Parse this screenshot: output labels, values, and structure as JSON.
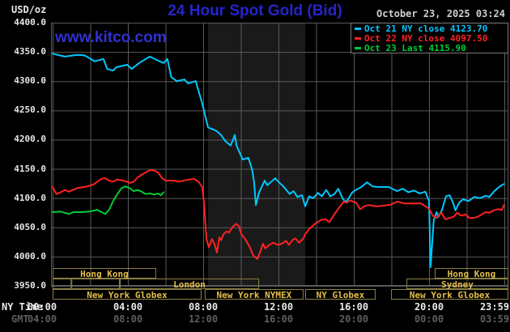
{
  "header": {
    "unit_label": "USD/oz",
    "title": "24 Hour Spot Gold (Bid)",
    "datetime": "October 23, 2025 03:24",
    "watermark": "www.kitco.com"
  },
  "legend": [
    {
      "label": "Oct 21 NY close 4123.70",
      "color": "#00c8ff"
    },
    {
      "label": "Oct 22 NY close 4097.50",
      "color": "#ff2222"
    },
    {
      "label": "Oct 23 Last 4115.90",
      "color": "#00cc33"
    }
  ],
  "axes": {
    "y_tick_labels": [
      "4400.0",
      "4350.0",
      "4300.0",
      "4250.0",
      "4200.0",
      "4150.0",
      "4100.0",
      "4050.0",
      "4000.0",
      "3950.0"
    ],
    "y_max": 4400,
    "y_min": 3950,
    "y_step": 50,
    "x_row1_label": "NY Time",
    "x_row2_label": "GMT",
    "x_row1_ticks": [
      "00:00",
      "04:00",
      "08:00",
      "12:00",
      "16:00",
      "20:00",
      "23:59"
    ],
    "x_row2_ticks": [
      "04:00",
      "08:00",
      "12:00",
      "16:00",
      "20:00",
      "00:00",
      "03:59"
    ],
    "grid_hours_step": 2,
    "hours_span": 24
  },
  "sessions": {
    "rows": [
      [
        {
          "label": "Hong Kong",
          "h0": 0.0,
          "h1": 5.5
        },
        {
          "label": "Hong Kong",
          "h0": 20.3,
          "h1": 24.25
        }
      ],
      [
        {
          "label": "",
          "h0": 0.0,
          "h1": 1.0
        },
        {
          "label": "",
          "h0": 1.0,
          "h1": 3.57
        },
        {
          "label": "London",
          "h0": 3.57,
          "h1": 10.97
        },
        {
          "label": "Sydney",
          "h0": 18.8,
          "h1": 24.25
        }
      ],
      [
        {
          "label": "New York Globex",
          "h0": 0.0,
          "h1": 7.91
        },
        {
          "label": "New York NYMEX",
          "h0": 8.08,
          "h1": 13.33
        },
        {
          "label": "NY Globex",
          "h0": 13.42,
          "h1": 17.16
        },
        {
          "label": "New York Globex",
          "h0": 17.98,
          "h1": 24.25
        }
      ]
    ]
  },
  "highlight_band": {
    "h0": 8.25,
    "h1": 13.42,
    "color": "#1a1a1a"
  },
  "colors": {
    "background": "#000000",
    "grid": "#5a5a5a",
    "title_blue": "#2525cc",
    "date_text": "#cfcfcf",
    "session_border": "#8a7f45",
    "session_text": "#e3bf49"
  },
  "chart_data": {
    "type": "line",
    "title": "24 Hour Spot Gold (Bid)",
    "xlabel": "NY Time (hours, 00:00-23:59)",
    "ylabel": "USD/oz",
    "ylim": [
      3950,
      4400
    ],
    "grid": true,
    "legend_position": "top-right",
    "series": [
      {
        "name": "Oct 21 (NY close 4123.70)",
        "color": "#00c8ff",
        "points": [
          [
            0.0,
            4347
          ],
          [
            0.65,
            4342
          ],
          [
            1.3,
            4345
          ],
          [
            1.7,
            4344
          ],
          [
            2.24,
            4334
          ],
          [
            2.7,
            4338
          ],
          [
            2.9,
            4321
          ],
          [
            3.2,
            4318
          ],
          [
            3.4,
            4324
          ],
          [
            3.96,
            4328
          ],
          [
            4.2,
            4321
          ],
          [
            4.6,
            4331
          ],
          [
            5.16,
            4342
          ],
          [
            5.6,
            4335
          ],
          [
            5.9,
            4331
          ],
          [
            6.1,
            4338
          ],
          [
            6.3,
            4307
          ],
          [
            6.6,
            4300
          ],
          [
            7.0,
            4303
          ],
          [
            7.2,
            4296
          ],
          [
            7.6,
            4300
          ],
          [
            7.95,
            4262
          ],
          [
            8.26,
            4221
          ],
          [
            8.7,
            4215
          ],
          [
            8.95,
            4208
          ],
          [
            9.16,
            4198
          ],
          [
            9.46,
            4190
          ],
          [
            9.68,
            4208
          ],
          [
            9.77,
            4190
          ],
          [
            10.1,
            4166
          ],
          [
            10.4,
            4169
          ],
          [
            10.6,
            4149
          ],
          [
            10.7,
            4128
          ],
          [
            10.8,
            4088
          ],
          [
            10.97,
            4110
          ],
          [
            11.27,
            4130
          ],
          [
            11.4,
            4122
          ],
          [
            11.83,
            4134
          ],
          [
            11.96,
            4129
          ],
          [
            12.26,
            4120
          ],
          [
            12.6,
            4107
          ],
          [
            12.8,
            4112
          ],
          [
            13.0,
            4102
          ],
          [
            13.25,
            4105
          ],
          [
            13.42,
            4086
          ],
          [
            13.63,
            4103
          ],
          [
            13.85,
            4100
          ],
          [
            14.1,
            4109
          ],
          [
            14.3,
            4103
          ],
          [
            14.54,
            4114
          ],
          [
            14.75,
            4103
          ],
          [
            14.97,
            4107
          ],
          [
            15.18,
            4116
          ],
          [
            15.4,
            4100
          ],
          [
            15.57,
            4093
          ],
          [
            15.7,
            4098
          ],
          [
            15.9,
            4109
          ],
          [
            16.1,
            4114
          ],
          [
            16.4,
            4119
          ],
          [
            16.7,
            4127
          ],
          [
            17.0,
            4120
          ],
          [
            17.3,
            4119
          ],
          [
            17.85,
            4119
          ],
          [
            18.3,
            4112
          ],
          [
            18.6,
            4116
          ],
          [
            18.9,
            4110
          ],
          [
            19.2,
            4113
          ],
          [
            19.5,
            4108
          ],
          [
            19.8,
            4111
          ],
          [
            20.0,
            4095
          ],
          [
            20.08,
            3982
          ],
          [
            20.25,
            4062
          ],
          [
            20.4,
            4076
          ],
          [
            20.5,
            4068
          ],
          [
            20.7,
            4081
          ],
          [
            20.9,
            4103
          ],
          [
            21.1,
            4105
          ],
          [
            21.3,
            4090
          ],
          [
            21.4,
            4079
          ],
          [
            21.6,
            4092
          ],
          [
            21.8,
            4098
          ],
          [
            22.1,
            4095
          ],
          [
            22.4,
            4102
          ],
          [
            22.7,
            4100
          ],
          [
            23.0,
            4104
          ],
          [
            23.2,
            4102
          ],
          [
            23.5,
            4113
          ],
          [
            23.8,
            4121
          ],
          [
            23.98,
            4124
          ]
        ]
      },
      {
        "name": "Oct 22 (NY close 4097.50)",
        "color": "#ff2222",
        "points": [
          [
            0.0,
            4119
          ],
          [
            0.2,
            4107
          ],
          [
            0.43,
            4110
          ],
          [
            0.65,
            4114
          ],
          [
            0.86,
            4111
          ],
          [
            1.3,
            4117
          ],
          [
            1.7,
            4119
          ],
          [
            2.15,
            4123
          ],
          [
            2.6,
            4133
          ],
          [
            2.8,
            4134
          ],
          [
            3.0,
            4130
          ],
          [
            3.2,
            4128
          ],
          [
            3.44,
            4132
          ],
          [
            3.87,
            4129
          ],
          [
            4.1,
            4126
          ],
          [
            4.3,
            4128
          ],
          [
            4.5,
            4135
          ],
          [
            4.73,
            4140
          ],
          [
            4.95,
            4144
          ],
          [
            5.2,
            4148
          ],
          [
            5.4,
            4147
          ],
          [
            5.6,
            4144
          ],
          [
            5.8,
            4135
          ],
          [
            6.0,
            4130
          ],
          [
            6.45,
            4130
          ],
          [
            6.7,
            4128
          ],
          [
            7.1,
            4131
          ],
          [
            7.5,
            4133
          ],
          [
            7.75,
            4128
          ],
          [
            7.95,
            4119
          ],
          [
            8.05,
            4090
          ],
          [
            8.17,
            4030
          ],
          [
            8.3,
            4016
          ],
          [
            8.47,
            4030
          ],
          [
            8.6,
            4022
          ],
          [
            8.73,
            4007
          ],
          [
            8.86,
            4033
          ],
          [
            8.95,
            4028
          ],
          [
            9.07,
            4038
          ],
          [
            9.25,
            4043
          ],
          [
            9.37,
            4041
          ],
          [
            9.55,
            4050
          ],
          [
            9.76,
            4056
          ],
          [
            9.9,
            4052
          ],
          [
            10.0,
            4040
          ],
          [
            10.23,
            4030
          ],
          [
            10.45,
            4018
          ],
          [
            10.66,
            4002
          ],
          [
            10.88,
            3996
          ],
          [
            11.05,
            4010
          ],
          [
            11.18,
            4022
          ],
          [
            11.3,
            4014
          ],
          [
            11.52,
            4020
          ],
          [
            11.74,
            4024
          ],
          [
            11.95,
            4020
          ],
          [
            12.17,
            4022
          ],
          [
            12.4,
            4027
          ],
          [
            12.56,
            4020
          ],
          [
            12.77,
            4029
          ],
          [
            12.9,
            4031
          ],
          [
            13.1,
            4024
          ],
          [
            13.33,
            4031
          ],
          [
            13.42,
            4038
          ],
          [
            13.63,
            4047
          ],
          [
            13.98,
            4057
          ],
          [
            14.28,
            4063
          ],
          [
            14.5,
            4064
          ],
          [
            14.7,
            4059
          ],
          [
            15.05,
            4076
          ],
          [
            15.27,
            4086
          ],
          [
            15.48,
            4094
          ],
          [
            15.6,
            4092
          ],
          [
            15.83,
            4096
          ],
          [
            16.13,
            4092
          ],
          [
            16.34,
            4081
          ],
          [
            16.56,
            4086
          ],
          [
            16.77,
            4088
          ],
          [
            17.2,
            4086
          ],
          [
            17.55,
            4087
          ],
          [
            17.98,
            4089
          ],
          [
            18.3,
            4094
          ],
          [
            18.7,
            4091
          ],
          [
            19.14,
            4091
          ],
          [
            19.57,
            4091
          ],
          [
            20.0,
            4082
          ],
          [
            20.2,
            4070
          ],
          [
            20.4,
            4066
          ],
          [
            20.65,
            4075
          ],
          [
            20.86,
            4064
          ],
          [
            21.08,
            4066
          ],
          [
            21.3,
            4068
          ],
          [
            21.5,
            4075
          ],
          [
            21.7,
            4070
          ],
          [
            21.93,
            4072
          ],
          [
            22.15,
            4066
          ],
          [
            22.36,
            4066
          ],
          [
            22.58,
            4068
          ],
          [
            22.8,
            4072
          ],
          [
            23.0,
            4076
          ],
          [
            23.2,
            4075
          ],
          [
            23.44,
            4079
          ],
          [
            23.65,
            4081
          ],
          [
            23.87,
            4080
          ],
          [
            23.98,
            4088
          ]
        ]
      },
      {
        "name": "Oct 23 (Last 4115.90)",
        "color": "#00cc33",
        "points": [
          [
            0.0,
            4076
          ],
          [
            0.43,
            4077
          ],
          [
            0.86,
            4073
          ],
          [
            1.1,
            4076
          ],
          [
            1.5,
            4076
          ],
          [
            1.94,
            4077
          ],
          [
            2.37,
            4080
          ],
          [
            2.6,
            4076
          ],
          [
            2.8,
            4073
          ],
          [
            3.0,
            4080
          ],
          [
            3.23,
            4096
          ],
          [
            3.44,
            4107
          ],
          [
            3.66,
            4117
          ],
          [
            3.87,
            4120
          ],
          [
            4.1,
            4117
          ],
          [
            4.3,
            4112
          ],
          [
            4.52,
            4114
          ],
          [
            4.73,
            4111
          ],
          [
            4.95,
            4107
          ],
          [
            5.16,
            4108
          ],
          [
            5.4,
            4106
          ],
          [
            5.6,
            4108
          ],
          [
            5.75,
            4105
          ],
          [
            5.9,
            4110
          ]
        ]
      }
    ]
  }
}
